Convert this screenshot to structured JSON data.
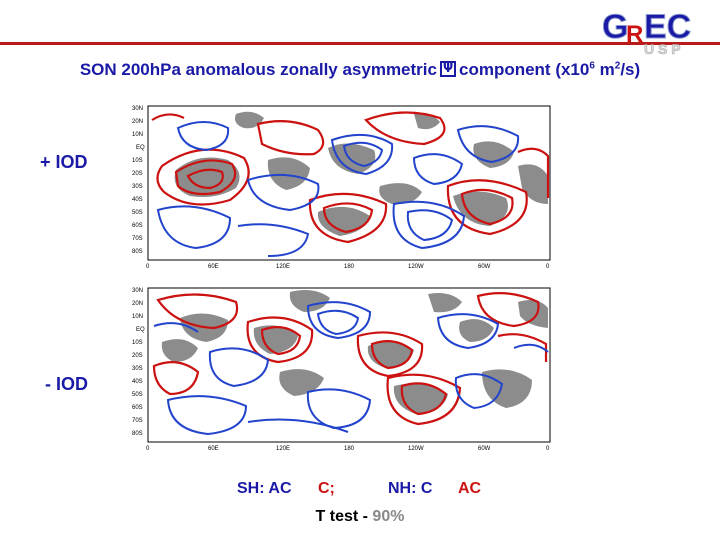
{
  "header": {
    "title_pre": "SON 200hPa anomalous zonally asymmetric",
    "title_post": "component (x10",
    "title_exp1": "6",
    "title_mid": " m",
    "title_exp2": "2",
    "title_end": "/s)",
    "logo_text": "GREC",
    "logo_sub": "USP"
  },
  "labels": {
    "plus_iod": "+ IOD",
    "minus_iod": "- IOD"
  },
  "panel_axes": {
    "lat_ticks": [
      "30N",
      "20N",
      "10N",
      "EQ",
      "10S",
      "20S",
      "30S",
      "40S",
      "50S",
      "60S",
      "70S",
      "80S"
    ],
    "lon_ticks": [
      "0",
      "60E",
      "120E",
      "180",
      "120W",
      "60W",
      "0"
    ]
  },
  "legend": {
    "sh_label": "SH: AC",
    "sh_val": "C;",
    "nh_label": "NH: C",
    "nh_val": "AC",
    "test_label": "T test - ",
    "test_val": "90%"
  },
  "colors": {
    "blue": "#1a1aa6",
    "red": "#cc1111",
    "shade": "#8c8c8c"
  }
}
